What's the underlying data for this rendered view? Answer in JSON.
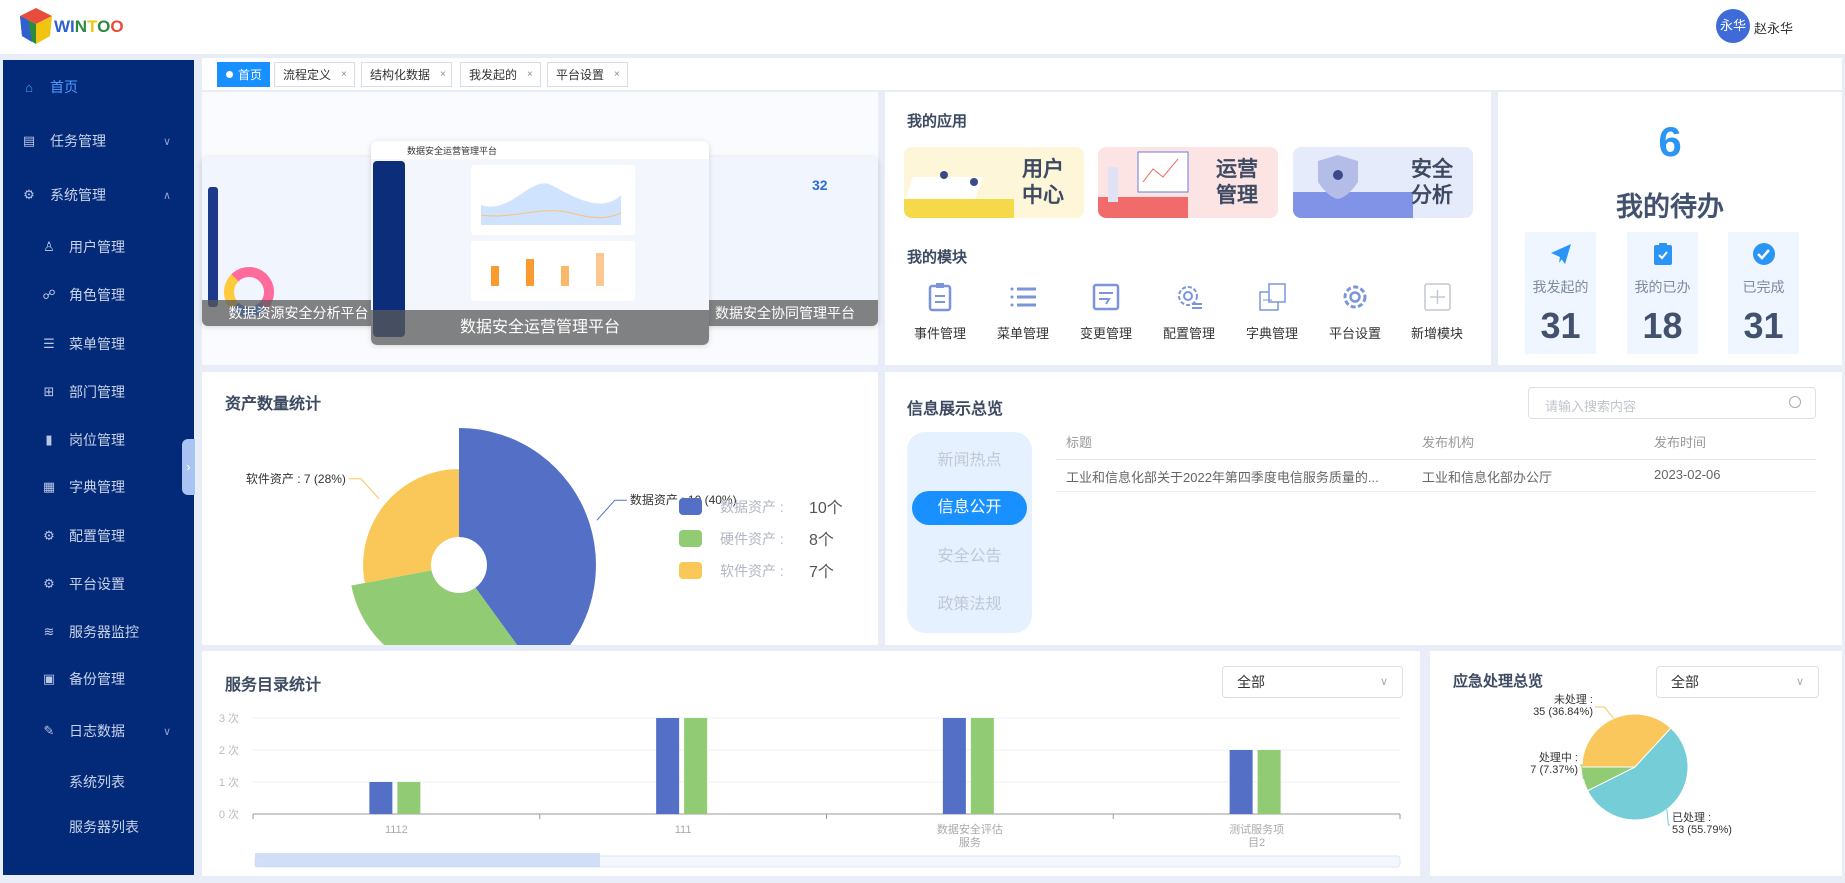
{
  "header": {
    "logo_text": "WINTOO",
    "avatar_text": "永华",
    "user_name": "赵永华"
  },
  "sidebar": {
    "items": [
      {
        "label": "首页",
        "icon": "home-icon",
        "level": 1,
        "active": true
      },
      {
        "label": "任务管理",
        "icon": "task-icon",
        "level": 1,
        "chevron": "down"
      },
      {
        "label": "系统管理",
        "icon": "gear-icon",
        "level": 1,
        "chevron": "up"
      },
      {
        "label": "用户管理",
        "icon": "user-icon",
        "level": 2
      },
      {
        "label": "角色管理",
        "icon": "role-icon",
        "level": 2
      },
      {
        "label": "菜单管理",
        "icon": "list-icon",
        "level": 2
      },
      {
        "label": "部门管理",
        "icon": "org-icon",
        "level": 2
      },
      {
        "label": "岗位管理",
        "icon": "post-icon",
        "level": 2
      },
      {
        "label": "字典管理",
        "icon": "dict-icon",
        "level": 2
      },
      {
        "label": "配置管理",
        "icon": "config-icon",
        "level": 2
      },
      {
        "label": "平台设置",
        "icon": "settings-icon",
        "level": 2
      },
      {
        "label": "服务器监控",
        "icon": "server-icon",
        "level": 2
      },
      {
        "label": "备份管理",
        "icon": "backup-icon",
        "level": 2
      },
      {
        "label": "日志数据",
        "icon": "log-icon",
        "level": 2,
        "chevron": "down"
      },
      {
        "label": "系统列表",
        "icon": "",
        "level": 3
      },
      {
        "label": "服务器列表",
        "icon": "",
        "level": 3
      }
    ]
  },
  "tabs": [
    {
      "label": "首页",
      "active": true
    },
    {
      "label": "流程定义",
      "close": "×"
    },
    {
      "label": "结构化数据",
      "close": "×"
    },
    {
      "label": "我发起的",
      "close": "×"
    },
    {
      "label": "平台设置",
      "close": "×"
    }
  ],
  "carousel": {
    "captions": [
      "数据资源安全分析平台",
      "数据安全运营管理平台",
      "数据安全协同管理平台"
    ],
    "center_title": "数据安全运营管理平台"
  },
  "apps": {
    "title": "我的应用",
    "items": [
      {
        "label": "用户中心",
        "bg": "#fdf6d8"
      },
      {
        "label": "运营管理",
        "bg": "#fde4e4"
      },
      {
        "label": "安全分析",
        "bg": "#e6ebfb"
      }
    ]
  },
  "modules": {
    "title": "我的模块",
    "items": [
      "事件管理",
      "菜单管理",
      "变更管理",
      "配置管理",
      "字典管理",
      "平台设置",
      "新增模块"
    ]
  },
  "todo": {
    "count": "6",
    "title": "我的待办",
    "stats": [
      {
        "label": "我发起的",
        "value": "31",
        "icon": "paper-plane-icon"
      },
      {
        "label": "我的已办",
        "value": "18",
        "icon": "clipboard-check-icon"
      },
      {
        "label": "已完成",
        "value": "31",
        "icon": "check-circle-icon"
      }
    ]
  },
  "assets": {
    "title": "资产数量统计",
    "unit": "个"
  },
  "info": {
    "title": "信息展示总览",
    "search_placeholder": "请输入搜索内容",
    "categories": [
      "新闻热点",
      "信息公开",
      "安全公告",
      "政策法规"
    ],
    "active_category": 1,
    "columns": [
      "标题",
      "发布机构",
      "发布时间"
    ],
    "rows": [
      [
        "工业和信息化部关于2022年第四季度电信服务质量的...",
        "工业和信息化部办公厅",
        "2023-02-06"
      ]
    ]
  },
  "service": {
    "title": "服务目录统计",
    "filter": "全部"
  },
  "emergency": {
    "title": "应急处理总览",
    "filter": "全部"
  },
  "chart_data": [
    {
      "type": "pie",
      "variant": "rose",
      "title": "资产数量统计",
      "categories": [
        "数据资产",
        "硬件资产",
        "软件资产"
      ],
      "values": [
        10,
        8,
        7
      ],
      "percents": [
        "40%",
        "32%",
        "28%"
      ],
      "colors": [
        "#5470c6",
        "#91cc75",
        "#fac858"
      ],
      "legend": "right"
    },
    {
      "type": "bar",
      "title": "服务目录统计",
      "categories": [
        "1112",
        "111",
        "数据安全评估服务",
        "测试服务项目2"
      ],
      "yticks": [
        "0 次",
        "1 次",
        "2 次",
        "3 次"
      ],
      "ylim": [
        0,
        3
      ],
      "series": [
        {
          "values": [
            1,
            3,
            3,
            2
          ],
          "color": "#5470c6"
        },
        {
          "values": [
            1,
            3,
            3,
            2
          ],
          "color": "#91cc75"
        }
      ],
      "grid": true,
      "datazoom": true
    },
    {
      "type": "pie",
      "title": "应急处理总览",
      "categories": [
        "未处理",
        "已处理",
        "处理中"
      ],
      "values": [
        35,
        53,
        7
      ],
      "percents": [
        "36.84%",
        "55.79%",
        "7.37%"
      ],
      "colors": [
        "#f9c75c",
        "#74cdd7",
        "#91cc75"
      ]
    }
  ]
}
